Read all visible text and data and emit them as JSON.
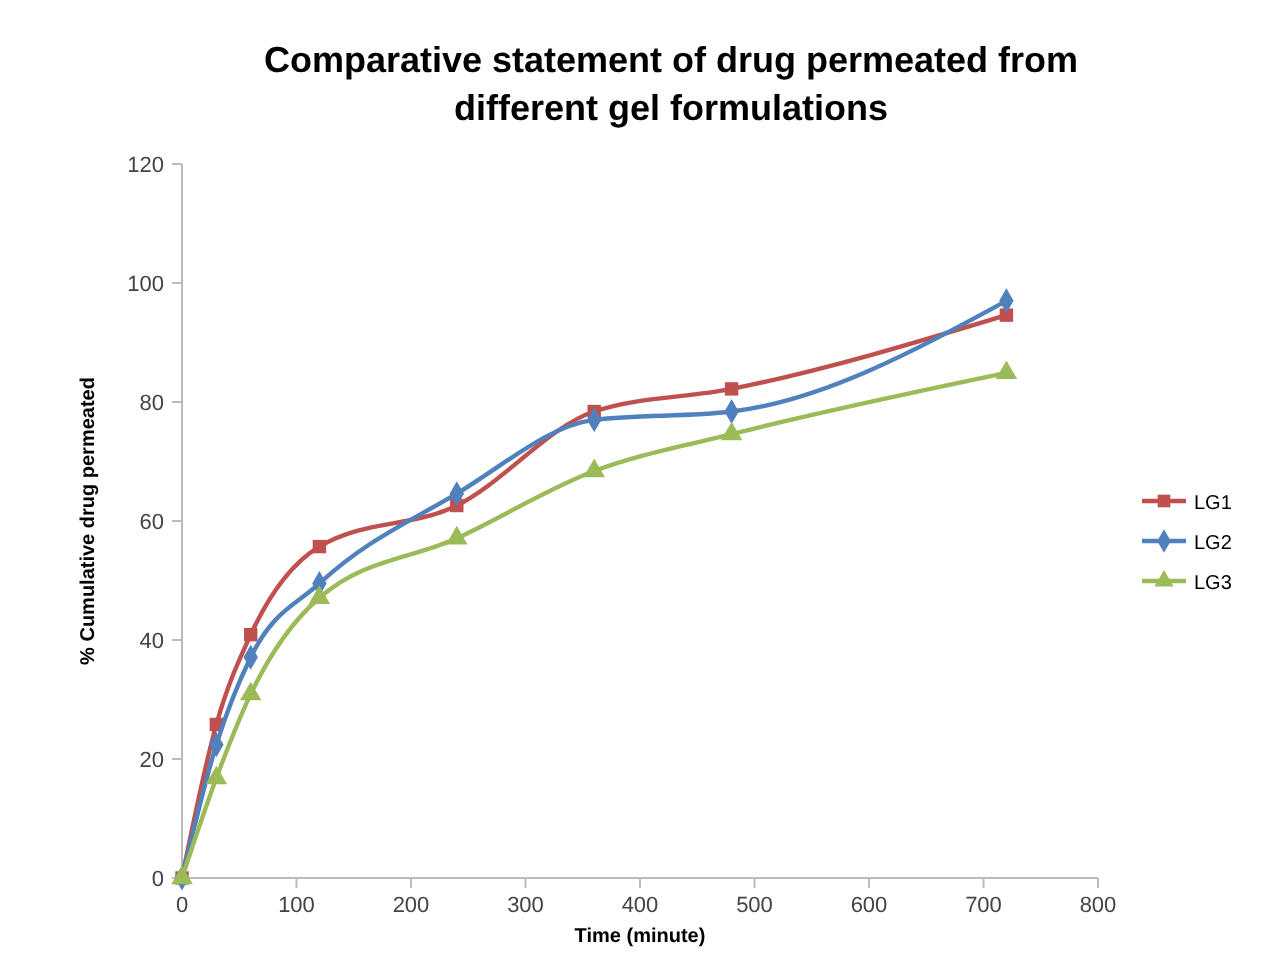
{
  "chart_data": {
    "type": "line",
    "title": "Comparative statement of drug  permeated from different gel formulations",
    "xlabel": "Time (minute)",
    "ylabel": "% Cumulative drug permeated",
    "x": [
      0,
      30,
      60,
      120,
      240,
      360,
      480,
      720
    ],
    "xlim": [
      0,
      800
    ],
    "xticks": [
      0,
      100,
      200,
      300,
      400,
      500,
      600,
      700,
      800
    ],
    "ylim": [
      0,
      120
    ],
    "yticks": [
      0,
      20,
      40,
      60,
      80,
      100,
      120
    ],
    "legend": "right",
    "grid": false,
    "line_style": "solid",
    "series": [
      {
        "name": "LG1",
        "color": "#c0504d",
        "marker": "square",
        "values": [
          0,
          25.8,
          40.9,
          55.7,
          62.6,
          78.4,
          82.2,
          94.6
        ]
      },
      {
        "name": "LG2",
        "color": "#4f81bd",
        "marker": "diamond",
        "values": [
          0,
          22.4,
          37.1,
          49.5,
          64.6,
          77,
          78.4,
          97
        ]
      },
      {
        "name": "LG3",
        "color": "#9bbb59",
        "marker": "triangle",
        "values": [
          0,
          16.8,
          30.9,
          47.1,
          57.1,
          68.4,
          74.6,
          84.9
        ]
      }
    ]
  }
}
